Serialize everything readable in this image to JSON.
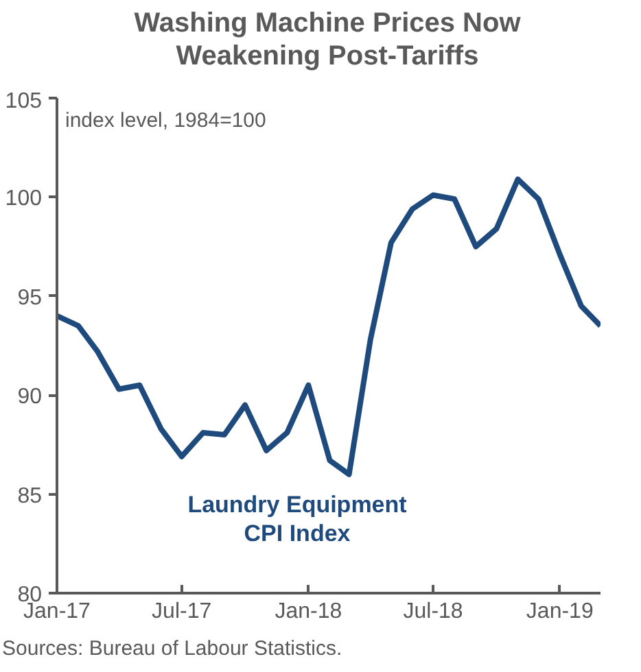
{
  "chart_data": {
    "type": "line",
    "title": "Washing Machine Prices Now\nWeakening Post-Tariffs",
    "ylabel": "index level, 1984=100",
    "x": [
      "2017-01",
      "2017-02",
      "2017-03",
      "2017-04",
      "2017-05",
      "2017-06",
      "2017-07",
      "2017-08",
      "2017-09",
      "2017-10",
      "2017-11",
      "2017-12",
      "2018-01",
      "2018-02",
      "2018-03",
      "2018-04",
      "2018-05",
      "2018-06",
      "2018-07",
      "2018-08",
      "2018-09",
      "2018-10",
      "2018-11",
      "2018-12",
      "2019-01",
      "2019-02",
      "2019-03"
    ],
    "series": [
      {
        "name": "Laundry Equipment\nCPI Index",
        "color": "#1f4a7d",
        "values": [
          94.0,
          93.5,
          92.2,
          90.3,
          90.5,
          88.3,
          86.9,
          88.1,
          88.0,
          89.5,
          87.2,
          88.1,
          90.5,
          86.7,
          86.0,
          92.8,
          97.7,
          99.4,
          100.1,
          99.9,
          97.5,
          98.4,
          100.9,
          99.9,
          97.1,
          94.5,
          93.5
        ]
      }
    ],
    "xlim": [
      "2017-01",
      "2019-03"
    ],
    "xticks": [
      {
        "value": "2017-01",
        "label": "Jan-17"
      },
      {
        "value": "2017-07",
        "label": "Jul-17"
      },
      {
        "value": "2018-01",
        "label": "Jan-18"
      },
      {
        "value": "2018-07",
        "label": "Jul-18"
      },
      {
        "value": "2019-01",
        "label": "Jan-19"
      }
    ],
    "ylim": [
      80,
      105
    ],
    "yticks": [
      80,
      85,
      90,
      95,
      100,
      105
    ],
    "grid": false,
    "marker": "none",
    "line_style": "solid",
    "annotations": [
      "Sources: Bureau of Labour Statistics."
    ]
  }
}
